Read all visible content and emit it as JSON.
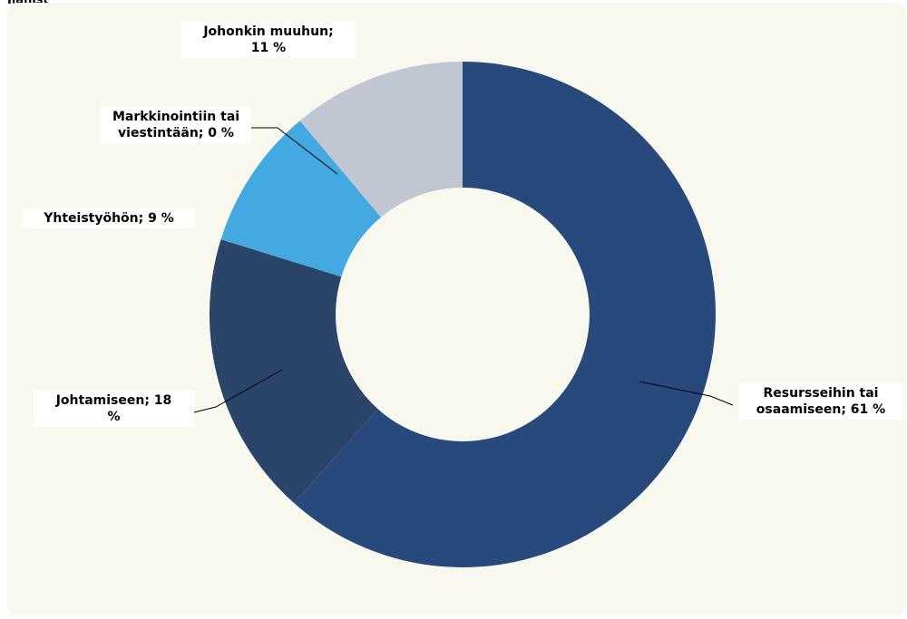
{
  "page": {
    "top_caption": "Ilanist"
  },
  "chart_data": {
    "type": "pie",
    "variant": "donut",
    "title": "",
    "legend": "none",
    "colors": {
      "plot_background": "#f8f8ee",
      "label_background": "#ffffff",
      "leader_line": "#000000"
    },
    "slices": [
      {
        "name": "Resursseihin tai osaamiseen",
        "value": 61,
        "color": "#27497c",
        "label_lines": [
          "Resursseihin tai",
          "osaamiseen; 61 %"
        ]
      },
      {
        "name": "Johtamiseen",
        "value": 18,
        "color": "#2b4469",
        "label_lines": [
          "Johtamiseen; 18",
          "%"
        ]
      },
      {
        "name": "Yhteistyöhön",
        "value": 9,
        "color": "#44a9e0",
        "label_lines": [
          "Yhteistyöhön; 9 %"
        ]
      },
      {
        "name": "Markkinointiin tai viestintään",
        "value": 0,
        "color": "#1f5f95",
        "label_lines": [
          "Markkinointiin tai",
          "viestintään; 0 %"
        ]
      },
      {
        "name": "Johonkin muuhun",
        "value": 11,
        "color": "#c0c6d2",
        "label_lines": [
          "Johonkin muuhun;",
          "11 %"
        ]
      }
    ]
  }
}
